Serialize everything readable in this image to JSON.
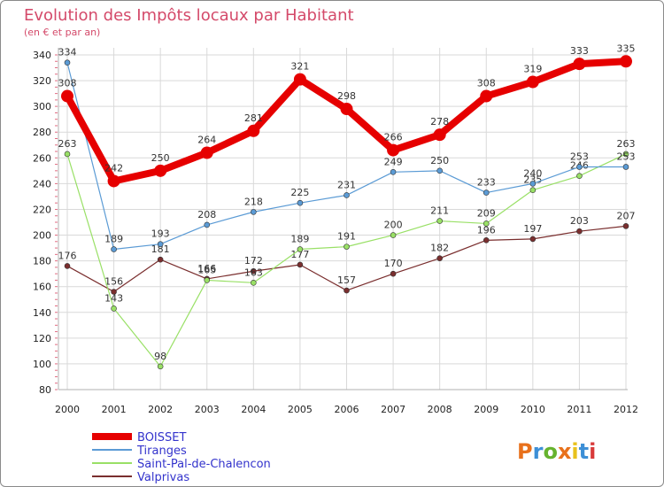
{
  "chart_data": {
    "type": "line",
    "title": "Evolution des Impôts locaux par Habitant",
    "subtitle": "(en € et par an)",
    "categories": [
      "2000",
      "2001",
      "2002",
      "2003",
      "2004",
      "2005",
      "2006",
      "2007",
      "2008",
      "2009",
      "2010",
      "2011",
      "2012"
    ],
    "ylim": [
      80,
      340
    ],
    "yticks": [
      80,
      100,
      120,
      140,
      160,
      180,
      200,
      220,
      240,
      260,
      280,
      300,
      320,
      340
    ],
    "grid": true,
    "legend_position": "bottom-left",
    "series": [
      {
        "name": "BOISSET",
        "color": "#e60000",
        "values": [
          308,
          242,
          250,
          264,
          281,
          321,
          298,
          266,
          278,
          308,
          319,
          333,
          335
        ]
      },
      {
        "name": "Tiranges",
        "color": "#5b9bd5",
        "values": [
          334,
          189,
          193,
          208,
          218,
          225,
          231,
          249,
          250,
          233,
          240,
          253,
          253
        ]
      },
      {
        "name": "Saint-Pal-de-Chalencon",
        "color": "#99e066",
        "values": [
          263,
          143,
          98,
          165,
          163,
          189,
          191,
          200,
          211,
          209,
          235,
          246,
          263
        ]
      },
      {
        "name": "Valprivas",
        "color": "#7a2e2e",
        "values": [
          176,
          156,
          181,
          166,
          172,
          177,
          157,
          170,
          182,
          196,
          197,
          203,
          207
        ]
      }
    ],
    "brand": {
      "text": "Proxiti",
      "colors": [
        "#e8711c",
        "#3d8fd6",
        "#66b32e",
        "#e8711c",
        "#e8c11c",
        "#3d8fd6",
        "#d83a3a"
      ]
    }
  }
}
